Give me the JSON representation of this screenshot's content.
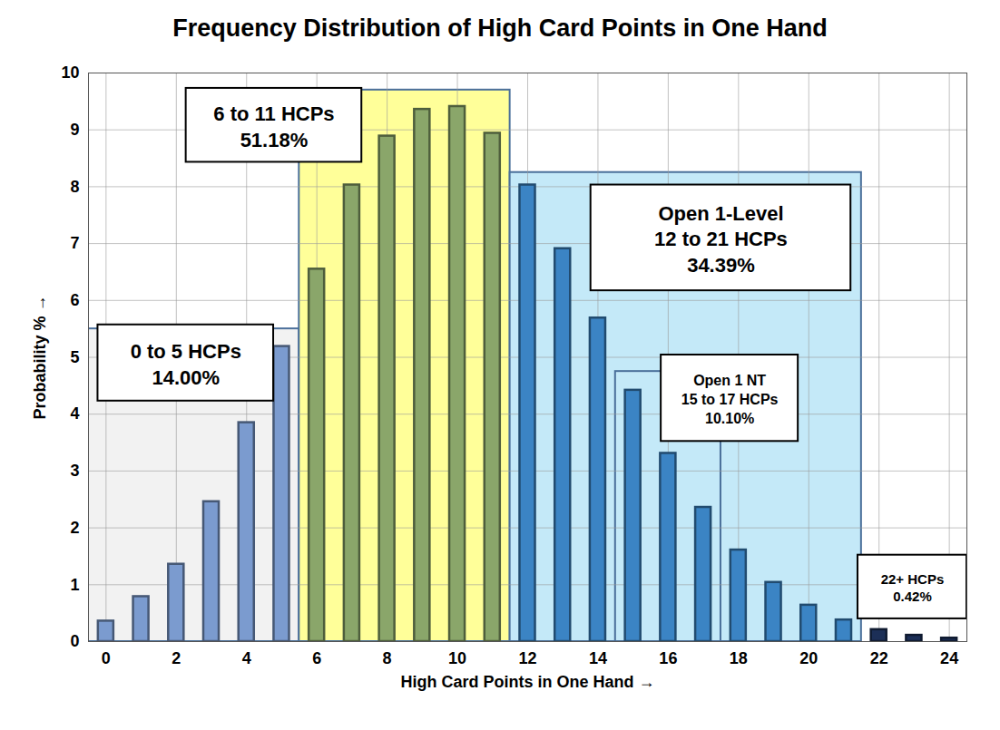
{
  "chart_data": {
    "type": "bar",
    "title": "Frequency Distribution of High Card Points in One Hand",
    "x_label": "High Card Points in One Hand",
    "y_label": "Probability %",
    "x": [
      0,
      1,
      2,
      3,
      4,
      5,
      6,
      7,
      8,
      9,
      10,
      11,
      12,
      13,
      14,
      15,
      16,
      17,
      18,
      19,
      20,
      21,
      22,
      23,
      24
    ],
    "values": [
      0.36,
      0.79,
      1.36,
      2.46,
      3.85,
      5.19,
      6.55,
      8.03,
      8.89,
      9.36,
      9.41,
      8.94,
      8.03,
      6.91,
      5.69,
      4.42,
      3.31,
      2.36,
      1.61,
      1.04,
      0.64,
      0.38,
      0.21,
      0.11,
      0.06
    ],
    "colors": [
      "#7b9bcf",
      "#7b9bcf",
      "#7b9bcf",
      "#7b9bcf",
      "#7b9bcf",
      "#7b9bcf",
      "#8aa66a",
      "#8aa66a",
      "#8aa66a",
      "#8aa66a",
      "#8aa66a",
      "#8aa66a",
      "#3b84c4",
      "#3b84c4",
      "#3b84c4",
      "#3b84c4",
      "#3b84c4",
      "#3b84c4",
      "#3b84c4",
      "#3b84c4",
      "#3b84c4",
      "#3b84c4",
      "#1c2f57",
      "#1c2f57",
      "#1c2f57"
    ],
    "xlim": [
      -0.5,
      24.5
    ],
    "xticks": [
      0,
      2,
      4,
      6,
      8,
      10,
      12,
      14,
      16,
      18,
      20,
      22,
      24
    ],
    "ylim": [
      0,
      10
    ],
    "yticks": [
      0,
      1,
      2,
      3,
      4,
      5,
      6,
      7,
      8,
      9,
      10
    ],
    "grid": true,
    "annotations": [
      {
        "text": [
          "0 to 5 HCPs",
          "14.00%"
        ],
        "x_range": [
          0,
          5
        ],
        "y_top": 5.5,
        "color": "#f2f2f2"
      },
      {
        "text": [
          "6 to 11 HCPs",
          "51.18%"
        ],
        "x_range": [
          6,
          11
        ],
        "y_top": 9.7,
        "color": "#ffff99"
      },
      {
        "text": [
          "Open 1-Level",
          "12 to 21 HCPs",
          "34.39%"
        ],
        "x_range": [
          12,
          21
        ],
        "y_top": 8.25,
        "color": "#c4e9f8"
      },
      {
        "text": [
          "Open 1 NT",
          "15 to 17 HCPs",
          "10.10%"
        ],
        "x_range": [
          15,
          17
        ],
        "y_top": 4.75
      },
      {
        "text": [
          "22+ HCPs",
          "0.42%"
        ]
      }
    ]
  }
}
